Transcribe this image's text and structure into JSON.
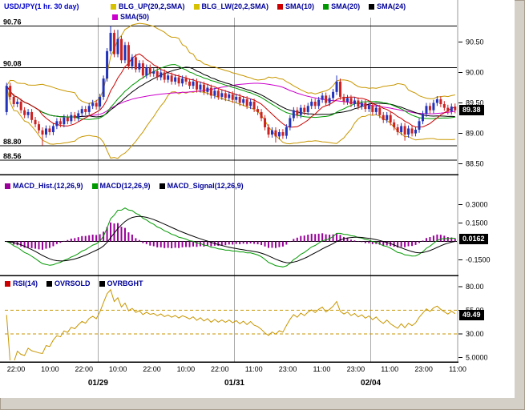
{
  "title": "USD/JPY(1 hr. 30 day)",
  "colors": {
    "up_candle": "#2233bb",
    "down_candle": "#cc2222",
    "bollinger": "#c99700",
    "sma10": "#cc0000",
    "sma20": "#009900",
    "sma24": "#000000",
    "sma50": "#cc00cc",
    "macd_hist": "#990099",
    "macd_line": "#009900",
    "macd_signal": "#000000",
    "rsi_line": "#c89600",
    "rsi_bands": "#c89600",
    "legend_text": "#000099",
    "grid": "#aaaaaa",
    "badge_bg": "#000000",
    "badge_text": "#ffffff"
  },
  "legends": {
    "price_row1": [
      {
        "label": "BLG_UP(20,2,SMA)",
        "color": "#d6c200"
      },
      {
        "label": "BLG_LW(20,2,SMA)",
        "color": "#d6c200"
      },
      {
        "label": "SMA(10)",
        "color": "#cc0000"
      },
      {
        "label": "SMA(20)",
        "color": "#009900"
      },
      {
        "label": "SMA(24)",
        "color": "#000000"
      }
    ],
    "price_row2": [
      {
        "label": "SMA(50)",
        "color": "#cc00cc"
      }
    ],
    "macd": [
      {
        "label": "MACD_Hist.(12,26,9)",
        "color": "#990099"
      },
      {
        "label": "MACD(12,26,9)",
        "color": "#009900"
      },
      {
        "label": "MACD_Signal(12,26,9)",
        "color": "#000000"
      }
    ],
    "rsi": [
      {
        "label": "RSI(14)",
        "color": "#cc0000"
      },
      {
        "label": "OVRSOLD",
        "color": "#000000"
      },
      {
        "label": "OVRBGHT",
        "color": "#000000"
      }
    ]
  },
  "badges": {
    "price": "89.38",
    "macd": "0.0162",
    "rsi": "49.49"
  },
  "chart_data": {
    "type": "candlestick",
    "instrument": "USD/JPY",
    "timeframe": "1 hr. 30 day",
    "panels": [
      "price with SMA(10,20,24,50) and Bollinger(20,2)",
      "MACD(12,26,9) with histogram and signal",
      "RSI(14) with OVRSOLD/OVRBGHT bands"
    ],
    "first_open": 89.35,
    "default_wick": 0.05,
    "closes": [
      89.78,
      89.6,
      89.48,
      89.52,
      89.38,
      89.3,
      89.35,
      89.22,
      89.15,
      89.05,
      88.98,
      89.08,
      89.02,
      89.12,
      89.2,
      89.15,
      89.26,
      89.2,
      89.3,
      89.25,
      89.33,
      89.4,
      89.35,
      89.45,
      89.5,
      89.44,
      89.6,
      89.9,
      90.35,
      90.65,
      90.3,
      90.55,
      90.2,
      90.45,
      90.1,
      90.25,
      90.05,
      90.15,
      89.95,
      90.08,
      89.98,
      90.02,
      89.92,
      90.0,
      89.88,
      89.95,
      89.85,
      89.92,
      89.82,
      89.9,
      89.85,
      89.78,
      89.85,
      89.72,
      89.8,
      89.68,
      89.75,
      89.62,
      89.7,
      89.6,
      89.66,
      89.58,
      89.64,
      89.55,
      89.6,
      89.5,
      89.56,
      89.45,
      89.52,
      89.4,
      89.35,
      89.25,
      89.1,
      88.98,
      89.05,
      88.95,
      89.02,
      88.96,
      89.1,
      89.25,
      89.38,
      89.3,
      89.42,
      89.35,
      89.45,
      89.52,
      89.45,
      89.55,
      89.62,
      89.5,
      89.58,
      89.68,
      89.85,
      89.6,
      89.52,
      89.58,
      89.48,
      89.54,
      89.44,
      89.5,
      89.4,
      89.46,
      89.35,
      89.42,
      89.3,
      89.22,
      89.3,
      89.18,
      89.1,
      89.02,
      89.12,
      88.98,
      89.08,
      89.0,
      89.06,
      89.2,
      89.32,
      89.45,
      89.38,
      89.5,
      89.56,
      89.48,
      89.42,
      89.36,
      89.44,
      89.38
    ],
    "high_overrides": {
      "29": 90.76,
      "31": 90.7,
      "92": 89.95
    },
    "low_overrides": {
      "10": 88.8,
      "75": 88.85,
      "111": 88.88
    },
    "price_axis": {
      "min": 88.35,
      "max": 90.9,
      "ticks": [
        "90.50",
        "90.00",
        "89.50",
        "89.00",
        "88.50"
      ],
      "tick_values": [
        90.5,
        90.0,
        89.5,
        89.0,
        88.5
      ],
      "current": 89.38
    },
    "key_levels": [
      {
        "label": "90.76",
        "value": 90.76
      },
      {
        "label": "90.08",
        "value": 90.08
      },
      {
        "label": "88.80",
        "value": 88.8
      },
      {
        "label": "88.56",
        "value": 88.56
      }
    ],
    "macd_axis": {
      "min": -0.25,
      "max": 0.4,
      "ticks": [
        "0.3000",
        "0.1500",
        "-0.1500"
      ],
      "tick_values": [
        0.3,
        0.15,
        -0.15
      ],
      "current": 0.0162
    },
    "rsi_axis": {
      "min": 2,
      "max": 85,
      "ticks": [
        "80.00",
        "55.00",
        "30.00",
        "5.0000"
      ],
      "tick_values": [
        80,
        55,
        30,
        5
      ],
      "current": 49.49,
      "bands": [
        55,
        30
      ]
    },
    "x_labels": [
      "22:00",
      "10:00",
      "22:00",
      "10:00",
      "22:00",
      "10:00",
      "22:00",
      "11:00",
      "23:00",
      "11:00",
      "23:00",
      "11:00",
      "23:00",
      "11:00"
    ],
    "date_marks": [
      {
        "label": "01/29",
        "index": 26
      },
      {
        "label": "01/31",
        "index": 64
      },
      {
        "label": "02/04",
        "index": 102
      }
    ]
  }
}
